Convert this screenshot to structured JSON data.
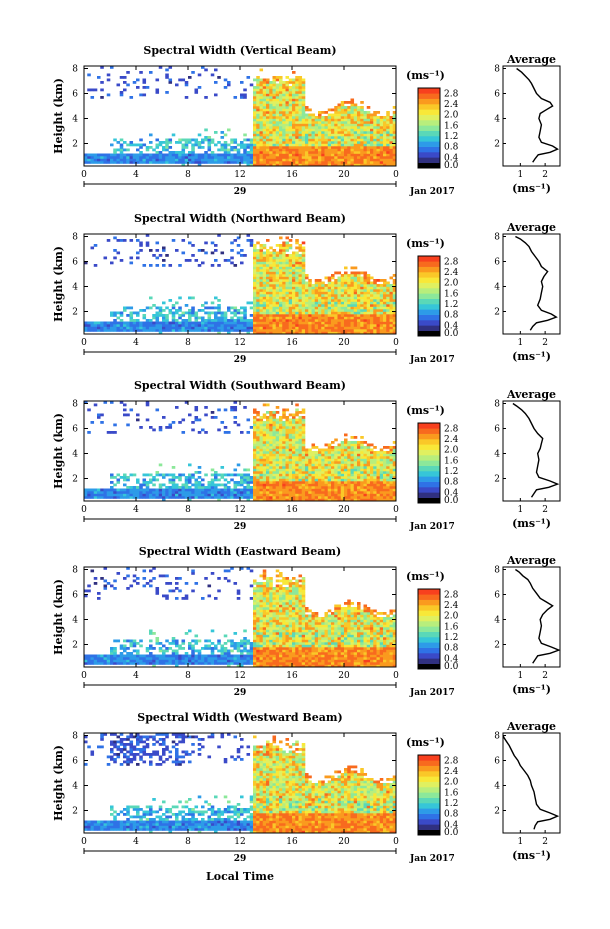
{
  "figure": {
    "xlabel": "Local Time",
    "date_label": "Jan 2017",
    "date_tick": "29",
    "ylabel": "Height (km)",
    "unit": "(ms⁻¹)",
    "avg_title": "Average",
    "avg_unit": "(ms⁻¹)"
  },
  "colorbar": {
    "ticks": [
      "0.0",
      "0.4",
      "0.8",
      "1.2",
      "1.6",
      "2.0",
      "2.4",
      "2.8"
    ],
    "range": [
      0,
      3.0
    ],
    "colors": [
      "#000000",
      "#303080",
      "#3a4ac8",
      "#2f72e6",
      "#2d9be8",
      "#36c6d8",
      "#5ad8b8",
      "#8ce89a",
      "#b8ee7c",
      "#e0f060",
      "#f8e838",
      "#fac828",
      "#fa9a1e",
      "#f86a1e",
      "#f8401e"
    ]
  },
  "chart_data": [
    {
      "type": "heatmap",
      "title": "Spectral Width (Vertical Beam)",
      "x_ticks": [
        "0",
        "4",
        "8",
        "12",
        "16",
        "20",
        "0"
      ],
      "xlim": [
        0,
        24
      ],
      "y_ticks": [
        "2",
        "4",
        "6",
        "8"
      ],
      "ylim": [
        0.2,
        8.2
      ],
      "average_profile": {
        "x_ticks": [
          "1",
          "2"
        ],
        "xlim": [
          0.3,
          2.6
        ],
        "y_ticks": [
          "2",
          "4",
          "6",
          "8"
        ],
        "ylim": [
          0.2,
          8.2
        ],
        "points": [
          [
            1.5,
            0.5
          ],
          [
            1.6,
            0.8
          ],
          [
            1.72,
            1.1
          ],
          [
            2.2,
            1.3
          ],
          [
            2.5,
            1.55
          ],
          [
            2.3,
            1.8
          ],
          [
            1.85,
            2.1
          ],
          [
            1.75,
            2.5
          ],
          [
            1.8,
            3.0
          ],
          [
            1.85,
            3.5
          ],
          [
            1.75,
            4.0
          ],
          [
            1.8,
            4.4
          ],
          [
            2.05,
            4.7
          ],
          [
            2.3,
            5.0
          ],
          [
            2.2,
            5.3
          ],
          [
            1.85,
            5.6
          ],
          [
            1.65,
            6.0
          ],
          [
            1.55,
            6.4
          ],
          [
            1.45,
            6.8
          ],
          [
            1.35,
            7.1
          ],
          [
            1.2,
            7.4
          ],
          [
            1.05,
            7.7
          ],
          [
            0.85,
            8.0
          ]
        ]
      }
    },
    {
      "type": "heatmap",
      "title": "Spectral Width (Northward Beam)",
      "x_ticks": [
        "0",
        "4",
        "8",
        "12",
        "16",
        "20",
        "0"
      ],
      "xlim": [
        0,
        24
      ],
      "y_ticks": [
        "2",
        "4",
        "6",
        "8"
      ],
      "ylim": [
        0.2,
        8.2
      ],
      "average_profile": {
        "x_ticks": [
          "1",
          "2"
        ],
        "xlim": [
          0.3,
          2.6
        ],
        "y_ticks": [
          "2",
          "4",
          "6",
          "8"
        ],
        "ylim": [
          0.2,
          8.2
        ],
        "points": [
          [
            1.4,
            0.5
          ],
          [
            1.5,
            0.8
          ],
          [
            1.65,
            1.1
          ],
          [
            2.1,
            1.3
          ],
          [
            2.45,
            1.55
          ],
          [
            2.25,
            1.8
          ],
          [
            1.85,
            2.1
          ],
          [
            1.7,
            2.5
          ],
          [
            1.8,
            3.0
          ],
          [
            1.85,
            3.5
          ],
          [
            1.9,
            4.0
          ],
          [
            1.85,
            4.4
          ],
          [
            1.95,
            4.8
          ],
          [
            2.1,
            5.2
          ],
          [
            1.85,
            5.6
          ],
          [
            1.75,
            6.0
          ],
          [
            1.6,
            6.4
          ],
          [
            1.45,
            6.8
          ],
          [
            1.35,
            7.2
          ],
          [
            1.2,
            7.5
          ],
          [
            1.0,
            7.8
          ],
          [
            0.8,
            8.0
          ]
        ]
      }
    },
    {
      "type": "heatmap",
      "title": "Spectral Width (Southward Beam)",
      "x_ticks": [
        "0",
        "4",
        "8",
        "12",
        "16",
        "20",
        "0"
      ],
      "xlim": [
        0,
        24
      ],
      "y_ticks": [
        "2",
        "4",
        "6",
        "8"
      ],
      "ylim": [
        0.2,
        8.2
      ],
      "average_profile": {
        "x_ticks": [
          "1",
          "2"
        ],
        "xlim": [
          0.3,
          2.6
        ],
        "y_ticks": [
          "2",
          "4",
          "6",
          "8"
        ],
        "ylim": [
          0.2,
          8.2
        ],
        "points": [
          [
            1.45,
            0.5
          ],
          [
            1.55,
            0.8
          ],
          [
            1.65,
            1.1
          ],
          [
            2.15,
            1.3
          ],
          [
            2.5,
            1.55
          ],
          [
            2.2,
            1.8
          ],
          [
            1.75,
            2.1
          ],
          [
            1.65,
            2.5
          ],
          [
            1.7,
            3.0
          ],
          [
            1.75,
            3.5
          ],
          [
            1.7,
            4.0
          ],
          [
            1.8,
            4.4
          ],
          [
            1.85,
            4.8
          ],
          [
            1.9,
            5.2
          ],
          [
            1.7,
            5.6
          ],
          [
            1.55,
            6.0
          ],
          [
            1.45,
            6.4
          ],
          [
            1.35,
            6.8
          ],
          [
            1.2,
            7.2
          ],
          [
            1.05,
            7.5
          ],
          [
            0.85,
            7.8
          ],
          [
            0.7,
            8.0
          ]
        ]
      }
    },
    {
      "type": "heatmap",
      "title": "Spectral Width (Eastward Beam)",
      "x_ticks": [
        "0",
        "4",
        "8",
        "12",
        "16",
        "20",
        "0"
      ],
      "xlim": [
        0,
        24
      ],
      "y_ticks": [
        "2",
        "4",
        "6",
        "8"
      ],
      "ylim": [
        0.2,
        8.2
      ],
      "average_profile": {
        "x_ticks": [
          "1",
          "2"
        ],
        "xlim": [
          0.3,
          2.6
        ],
        "y_ticks": [
          "2",
          "4",
          "6",
          "8"
        ],
        "ylim": [
          0.2,
          8.2
        ],
        "points": [
          [
            1.5,
            0.5
          ],
          [
            1.6,
            0.8
          ],
          [
            1.7,
            1.1
          ],
          [
            2.2,
            1.3
          ],
          [
            2.55,
            1.55
          ],
          [
            2.25,
            1.8
          ],
          [
            1.85,
            2.1
          ],
          [
            1.75,
            2.5
          ],
          [
            1.8,
            3.0
          ],
          [
            1.85,
            3.5
          ],
          [
            1.8,
            4.0
          ],
          [
            1.9,
            4.4
          ],
          [
            2.1,
            4.8
          ],
          [
            2.3,
            5.1
          ],
          [
            2.05,
            5.4
          ],
          [
            1.8,
            5.7
          ],
          [
            1.65,
            6.1
          ],
          [
            1.5,
            6.5
          ],
          [
            1.4,
            6.9
          ],
          [
            1.3,
            7.2
          ],
          [
            1.1,
            7.5
          ],
          [
            0.95,
            7.8
          ],
          [
            0.8,
            8.0
          ]
        ]
      }
    },
    {
      "type": "heatmap",
      "title": "Spectral Width (Westward Beam)",
      "x_ticks": [
        "0",
        "4",
        "8",
        "12",
        "16",
        "20",
        "0"
      ],
      "xlim": [
        0,
        24
      ],
      "y_ticks": [
        "2",
        "4",
        "6",
        "8"
      ],
      "ylim": [
        0.2,
        8.2
      ],
      "average_profile": {
        "x_ticks": [
          "1",
          "2"
        ],
        "xlim": [
          0.3,
          2.6
        ],
        "y_ticks": [
          "2",
          "4",
          "6",
          "8"
        ],
        "ylim": [
          0.2,
          8.2
        ],
        "points": [
          [
            1.55,
            0.5
          ],
          [
            1.6,
            0.8
          ],
          [
            1.7,
            1.1
          ],
          [
            2.2,
            1.3
          ],
          [
            2.5,
            1.55
          ],
          [
            2.2,
            1.8
          ],
          [
            1.8,
            2.1
          ],
          [
            1.65,
            2.5
          ],
          [
            1.6,
            3.0
          ],
          [
            1.55,
            3.5
          ],
          [
            1.45,
            4.0
          ],
          [
            1.4,
            4.4
          ],
          [
            1.3,
            4.8
          ],
          [
            1.15,
            5.2
          ],
          [
            1.0,
            5.6
          ],
          [
            0.9,
            6.0
          ],
          [
            0.75,
            6.4
          ],
          [
            0.65,
            6.8
          ],
          [
            0.55,
            7.2
          ],
          [
            0.45,
            7.5
          ],
          [
            0.35,
            7.8
          ],
          [
            0.3,
            8.0
          ]
        ]
      }
    }
  ]
}
